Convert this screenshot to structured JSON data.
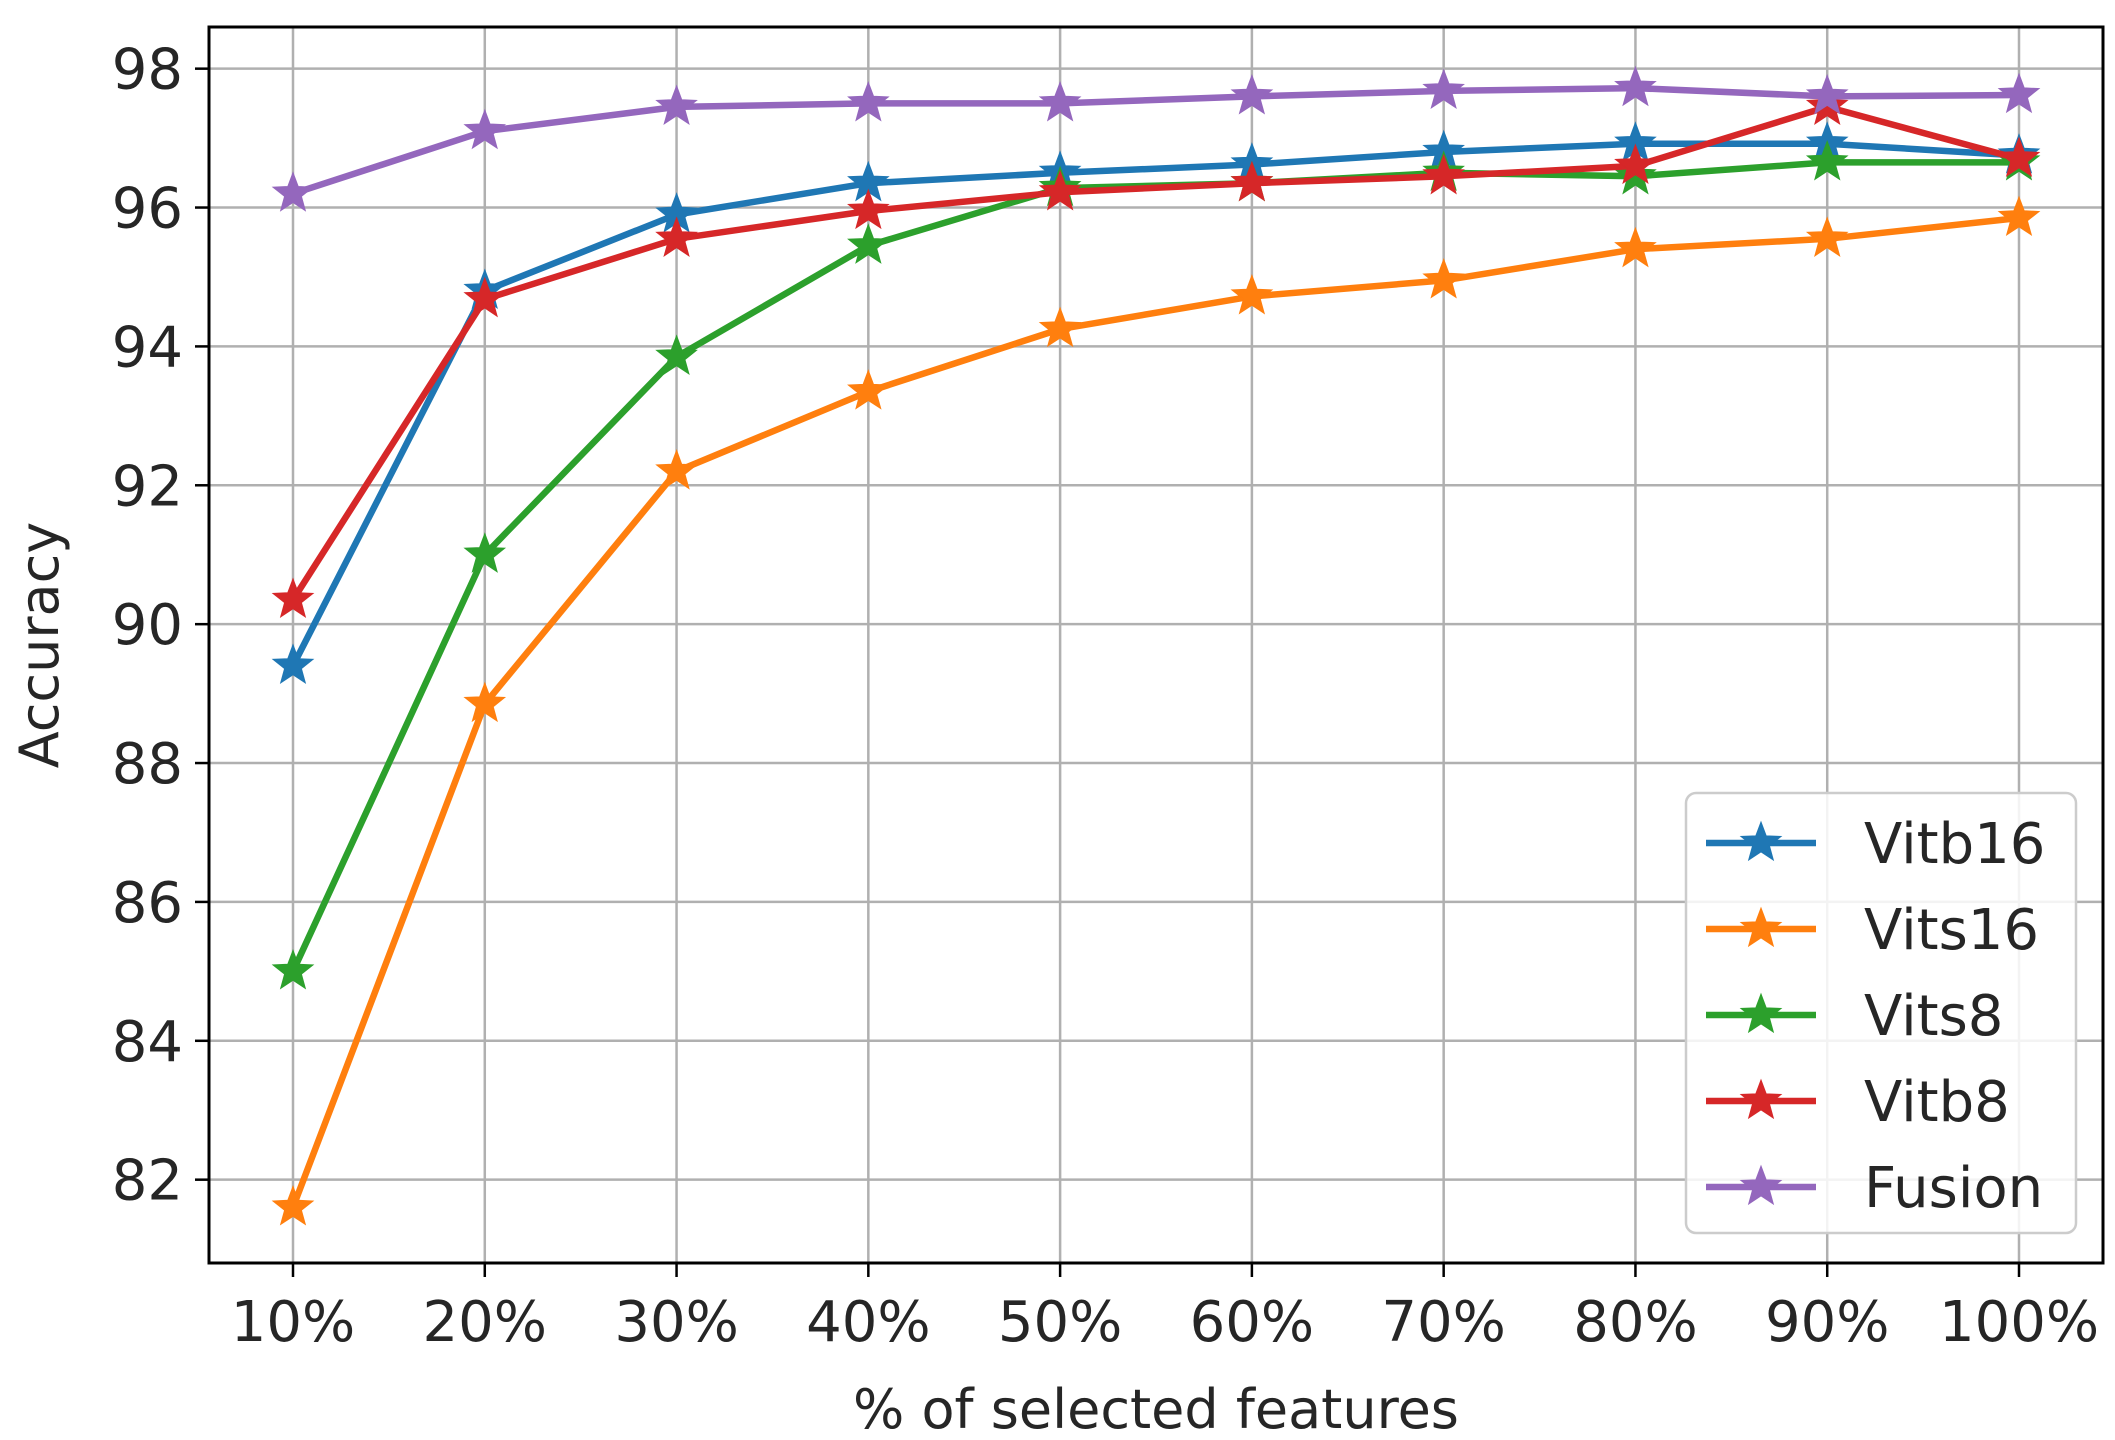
{
  "chart_data": {
    "type": "line",
    "x": [
      "10%",
      "20%",
      "30%",
      "40%",
      "50%",
      "60%",
      "70%",
      "80%",
      "90%",
      "100%"
    ],
    "xlabel": "% of selected features",
    "ylabel": "Accuracy",
    "yticks": [
      "82",
      "84",
      "86",
      "88",
      "90",
      "92",
      "94",
      "96",
      "98"
    ],
    "ylim": [
      80.8,
      98.6
    ],
    "grid": true,
    "legend_position": "bottom-right",
    "marker": "star",
    "series": [
      {
        "name": "Vitb16",
        "color": "#1f77b4",
        "values": [
          89.4,
          94.8,
          95.9,
          96.35,
          96.5,
          96.62,
          96.8,
          96.92,
          96.92,
          96.75
        ]
      },
      {
        "name": "Vits16",
        "color": "#ff7f0e",
        "values": [
          81.6,
          88.85,
          92.2,
          93.35,
          94.25,
          94.72,
          94.95,
          95.4,
          95.55,
          95.85
        ]
      },
      {
        "name": "Vits8",
        "color": "#2ca02c",
        "values": [
          85.0,
          91.0,
          93.85,
          95.45,
          96.28,
          96.35,
          96.5,
          96.45,
          96.65,
          96.65
        ]
      },
      {
        "name": "Vitb8",
        "color": "#d62728",
        "values": [
          90.35,
          94.68,
          95.55,
          95.95,
          96.22,
          96.35,
          96.45,
          96.6,
          97.45,
          96.7
        ]
      },
      {
        "name": "Fusion",
        "color": "#9467bd",
        "values": [
          96.2,
          97.1,
          97.45,
          97.5,
          97.5,
          97.6,
          97.68,
          97.72,
          97.6,
          97.62
        ]
      }
    ]
  }
}
